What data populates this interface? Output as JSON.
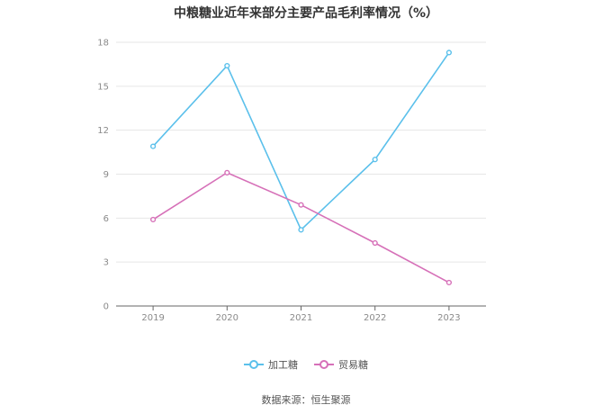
{
  "chart_data": {
    "type": "line",
    "title": "中粮糖业近年来部分主要产品毛利率情况（%）",
    "categories": [
      "2019",
      "2020",
      "2021",
      "2022",
      "2023"
    ],
    "series": [
      {
        "name": "加工糖",
        "color": "#5bc0eb",
        "values": [
          10.9,
          16.4,
          5.2,
          10.0,
          17.3
        ]
      },
      {
        "name": "贸易糖",
        "color": "#d670b8",
        "values": [
          5.9,
          9.1,
          6.9,
          4.3,
          1.6
        ]
      }
    ],
    "yticks": [
      "0",
      "3",
      "6",
      "9",
      "12",
      "15",
      "18"
    ],
    "ylim": [
      0,
      18
    ],
    "grid": true,
    "legend": "bottom",
    "xlabel": "",
    "ylabel": ""
  },
  "source": "数据来源：恒生聚源"
}
